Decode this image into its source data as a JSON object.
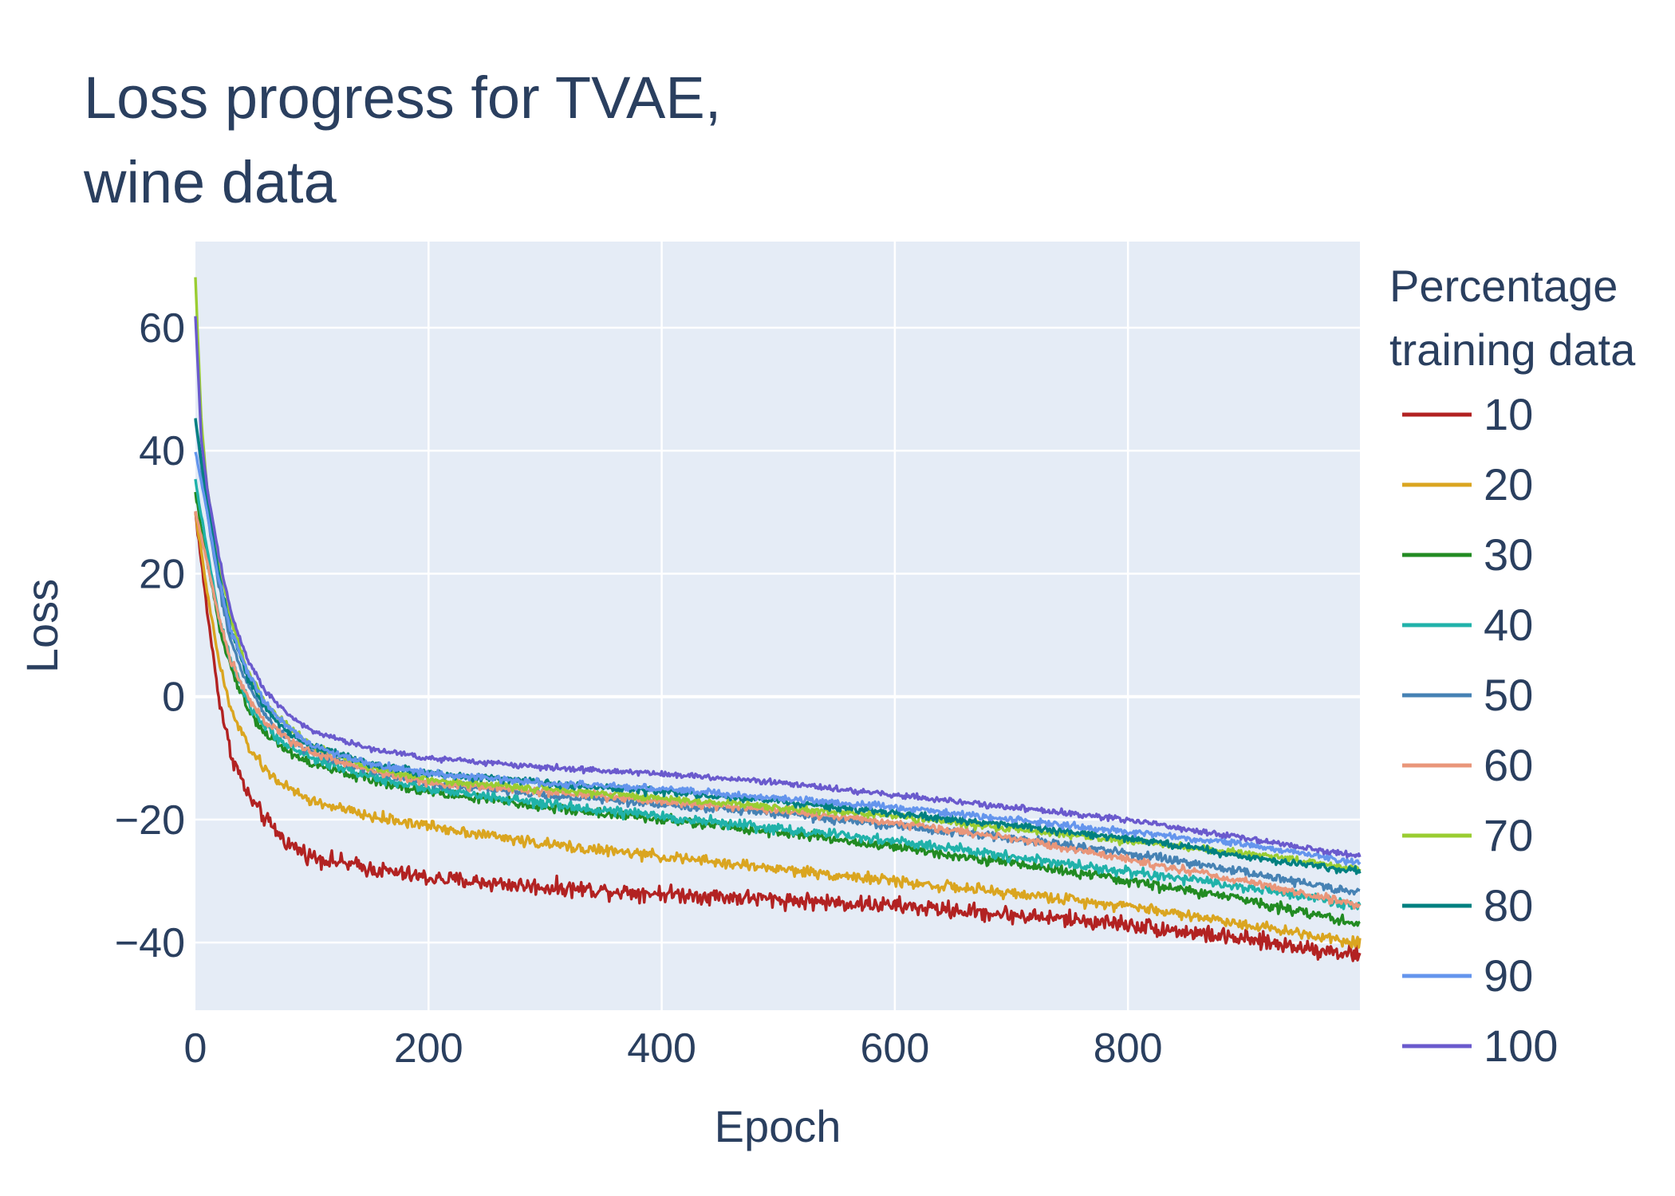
{
  "chart_data": {
    "type": "line",
    "title_lines": [
      "Loss progress for TVAE,",
      "wine data"
    ],
    "xlabel": "Epoch",
    "ylabel": "Loss",
    "xlim": [
      0,
      999
    ],
    "ylim": [
      -51,
      74
    ],
    "xticks": [
      0,
      200,
      400,
      600,
      800
    ],
    "xtick_labels": [
      "0",
      "200",
      "400",
      "600",
      "800"
    ],
    "yticks": [
      -40,
      -20,
      0,
      20,
      40,
      60
    ],
    "ytick_labels": [
      "−40",
      "−20",
      "0",
      "20",
      "40",
      "60"
    ],
    "grid": true,
    "legend_title_lines": [
      "Percentage",
      "training data"
    ],
    "legend_position": "right",
    "background": "#e5ecf6",
    "series": [
      {
        "name": "10",
        "color": "#b22222",
        "noise": 2.0,
        "points": [
          [
            0,
            30
          ],
          [
            10,
            14
          ],
          [
            20,
            0
          ],
          [
            30,
            -9
          ],
          [
            45,
            -16
          ],
          [
            60,
            -20
          ],
          [
            80,
            -24
          ],
          [
            100,
            -26
          ],
          [
            150,
            -28
          ],
          [
            200,
            -29.5
          ],
          [
            300,
            -31
          ],
          [
            400,
            -32
          ],
          [
            500,
            -33
          ],
          [
            600,
            -34
          ],
          [
            700,
            -35.5
          ],
          [
            800,
            -37
          ],
          [
            900,
            -39.5
          ],
          [
            999,
            -42
          ]
        ]
      },
      {
        "name": "20",
        "color": "#daa520",
        "noise": 1.3,
        "points": [
          [
            0,
            30
          ],
          [
            10,
            17
          ],
          [
            20,
            6
          ],
          [
            30,
            -2
          ],
          [
            45,
            -8
          ],
          [
            60,
            -12
          ],
          [
            80,
            -15
          ],
          [
            100,
            -17
          ],
          [
            150,
            -19.5
          ],
          [
            200,
            -21
          ],
          [
            300,
            -24
          ],
          [
            400,
            -26
          ],
          [
            500,
            -28
          ],
          [
            600,
            -30
          ],
          [
            700,
            -32
          ],
          [
            800,
            -34
          ],
          [
            900,
            -37
          ],
          [
            999,
            -40
          ]
        ]
      },
      {
        "name": "30",
        "color": "#228b22",
        "noise": 1.2,
        "points": [
          [
            0,
            33
          ],
          [
            10,
            22
          ],
          [
            20,
            12
          ],
          [
            30,
            5
          ],
          [
            45,
            -2
          ],
          [
            60,
            -6
          ],
          [
            80,
            -9
          ],
          [
            100,
            -11
          ],
          [
            150,
            -13.5
          ],
          [
            200,
            -15.5
          ],
          [
            300,
            -18
          ],
          [
            400,
            -20
          ],
          [
            500,
            -22
          ],
          [
            600,
            -24.5
          ],
          [
            700,
            -27
          ],
          [
            800,
            -30
          ],
          [
            900,
            -33
          ],
          [
            999,
            -37
          ]
        ]
      },
      {
        "name": "40",
        "color": "#20b2aa",
        "noise": 1.2,
        "points": [
          [
            0,
            35
          ],
          [
            10,
            24
          ],
          [
            20,
            13
          ],
          [
            30,
            6
          ],
          [
            45,
            -1
          ],
          [
            60,
            -5
          ],
          [
            80,
            -8
          ],
          [
            100,
            -10
          ],
          [
            150,
            -13
          ],
          [
            200,
            -15
          ],
          [
            300,
            -17.5
          ],
          [
            400,
            -19.5
          ],
          [
            500,
            -21.5
          ],
          [
            600,
            -23.5
          ],
          [
            700,
            -26
          ],
          [
            800,
            -28.5
          ],
          [
            900,
            -31
          ],
          [
            999,
            -34
          ]
        ]
      },
      {
        "name": "50",
        "color": "#4682b4",
        "noise": 1.0,
        "points": [
          [
            0,
            45
          ],
          [
            10,
            30
          ],
          [
            20,
            18
          ],
          [
            30,
            9
          ],
          [
            45,
            2
          ],
          [
            60,
            -3
          ],
          [
            80,
            -7
          ],
          [
            100,
            -9
          ],
          [
            150,
            -12
          ],
          [
            200,
            -14
          ],
          [
            300,
            -16
          ],
          [
            400,
            -17.5
          ],
          [
            500,
            -19
          ],
          [
            600,
            -21
          ],
          [
            700,
            -23
          ],
          [
            800,
            -25.5
          ],
          [
            900,
            -28.5
          ],
          [
            999,
            -32
          ]
        ]
      },
      {
        "name": "60",
        "color": "#e9967a",
        "noise": 1.0,
        "points": [
          [
            0,
            30
          ],
          [
            10,
            22
          ],
          [
            20,
            13
          ],
          [
            30,
            6
          ],
          [
            45,
            0
          ],
          [
            60,
            -4
          ],
          [
            80,
            -7
          ],
          [
            100,
            -9
          ],
          [
            150,
            -12
          ],
          [
            200,
            -14
          ],
          [
            300,
            -15.5
          ],
          [
            400,
            -17
          ],
          [
            500,
            -18.5
          ],
          [
            600,
            -20.5
          ],
          [
            700,
            -23
          ],
          [
            800,
            -26.5
          ],
          [
            900,
            -30
          ],
          [
            999,
            -34
          ]
        ]
      },
      {
        "name": "70",
        "color": "#9acd32",
        "noise": 0.9,
        "points": [
          [
            0,
            68
          ],
          [
            5,
            45
          ],
          [
            10,
            34
          ],
          [
            20,
            22
          ],
          [
            30,
            13
          ],
          [
            45,
            4
          ],
          [
            60,
            -1
          ],
          [
            80,
            -5
          ],
          [
            100,
            -8
          ],
          [
            150,
            -11.5
          ],
          [
            200,
            -13.5
          ],
          [
            300,
            -15
          ],
          [
            400,
            -16.5
          ],
          [
            500,
            -18
          ],
          [
            600,
            -19.5
          ],
          [
            700,
            -21.5
          ],
          [
            800,
            -23.5
          ],
          [
            900,
            -25.5
          ],
          [
            999,
            -28
          ]
        ]
      },
      {
        "name": "80",
        "color": "#008080",
        "noise": 0.9,
        "points": [
          [
            0,
            45
          ],
          [
            10,
            32
          ],
          [
            20,
            20
          ],
          [
            30,
            11
          ],
          [
            45,
            3
          ],
          [
            60,
            -2
          ],
          [
            80,
            -6
          ],
          [
            100,
            -8
          ],
          [
            150,
            -11
          ],
          [
            200,
            -12.5
          ],
          [
            300,
            -14
          ],
          [
            400,
            -15.5
          ],
          [
            500,
            -17
          ],
          [
            600,
            -19
          ],
          [
            700,
            -21
          ],
          [
            800,
            -23
          ],
          [
            900,
            -26
          ],
          [
            999,
            -28.5
          ]
        ]
      },
      {
        "name": "90",
        "color": "#6495ed",
        "noise": 0.8,
        "points": [
          [
            0,
            40
          ],
          [
            10,
            30
          ],
          [
            20,
            19
          ],
          [
            30,
            11
          ],
          [
            45,
            4
          ],
          [
            60,
            -1
          ],
          [
            80,
            -5
          ],
          [
            100,
            -8
          ],
          [
            150,
            -11
          ],
          [
            200,
            -12.5
          ],
          [
            300,
            -14
          ],
          [
            400,
            -15
          ],
          [
            500,
            -16.5
          ],
          [
            600,
            -18
          ],
          [
            700,
            -20
          ],
          [
            800,
            -22
          ],
          [
            900,
            -24
          ],
          [
            999,
            -27
          ]
        ]
      },
      {
        "name": "100",
        "color": "#6a5acd",
        "noise": 0.7,
        "points": [
          [
            0,
            62
          ],
          [
            5,
            42
          ],
          [
            10,
            34
          ],
          [
            20,
            23
          ],
          [
            30,
            14
          ],
          [
            45,
            6
          ],
          [
            60,
            1
          ],
          [
            80,
            -3
          ],
          [
            100,
            -5.5
          ],
          [
            150,
            -8.5
          ],
          [
            200,
            -10
          ],
          [
            300,
            -11.5
          ],
          [
            400,
            -12.5
          ],
          [
            500,
            -14
          ],
          [
            600,
            -16
          ],
          [
            700,
            -18
          ],
          [
            800,
            -20
          ],
          [
            900,
            -23
          ],
          [
            999,
            -26
          ]
        ]
      }
    ]
  }
}
